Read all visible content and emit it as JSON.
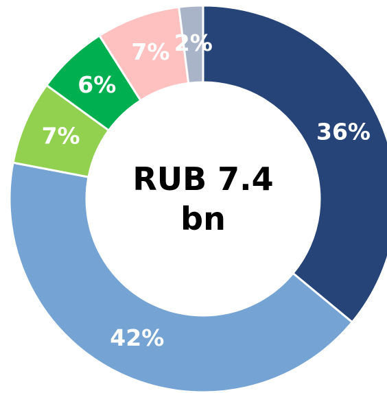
{
  "chart_data": {
    "type": "donut",
    "center_label": "RUB 7.4 bn",
    "categories": [
      null,
      null,
      null,
      null,
      null,
      null
    ],
    "values": [
      36,
      42,
      7,
      6,
      7,
      2
    ],
    "value_labels": [
      "36%",
      "42%",
      "7%",
      "6%",
      "7%",
      "2%"
    ],
    "colors": [
      "#264478",
      "#75a3d3",
      "#92d050",
      "#00b050",
      "#ffc0c0",
      "#a9b4c8"
    ]
  }
}
